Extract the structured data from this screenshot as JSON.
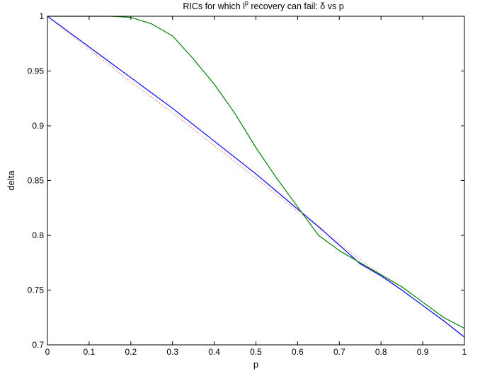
{
  "chart_data": {
    "type": "line",
    "title": {
      "prefix": "RICs for which ",
      "l_symbol": "l",
      "p_superscript": "p",
      "suffix": " recovery can fail: ",
      "delta_symbol": "δ",
      "tail": " vs p"
    },
    "xlabel": "p",
    "ylabel": "delta",
    "xlim": [
      0,
      1
    ],
    "ylim": [
      0.7,
      1
    ],
    "xticks": [
      0,
      0.1,
      0.2,
      0.3,
      0.4,
      0.5,
      0.6,
      0.7,
      0.8,
      0.9,
      1
    ],
    "xtick_labels": [
      "0",
      "0.1",
      "0.2",
      "0.3",
      "0.4",
      "0.5",
      "0.6",
      "0.7",
      "0.8",
      "0.9",
      "1"
    ],
    "yticks": [
      0.7,
      0.75,
      0.8,
      0.85,
      0.9,
      0.95,
      1
    ],
    "ytick_labels": [
      "0.7",
      "0.75",
      "0.8",
      "0.85",
      "0.9",
      "0.95",
      "1"
    ],
    "grid": false,
    "legend": "none",
    "x": [
      0,
      0.05,
      0.1,
      0.15,
      0.2,
      0.25,
      0.3,
      0.35,
      0.4,
      0.45,
      0.5,
      0.55,
      0.6,
      0.65,
      0.7,
      0.75,
      0.8,
      0.85,
      0.9,
      0.95,
      1
    ],
    "series": [
      {
        "color": "#0000ff",
        "style": "solid",
        "values": [
          1.0,
          0.986,
          0.972,
          0.958,
          0.944,
          0.93,
          0.916,
          0.901,
          0.886,
          0.871,
          0.856,
          0.84,
          0.824,
          0.808,
          0.791,
          0.774,
          0.763,
          0.75,
          0.736,
          0.722,
          0.707
        ]
      },
      {
        "color": "#008000",
        "style": "solid",
        "values": [
          1.0,
          1.0,
          1.0,
          1.0,
          0.999,
          0.993,
          0.982,
          0.961,
          0.938,
          0.911,
          0.88,
          0.852,
          0.826,
          0.8,
          0.786,
          0.775,
          0.764,
          0.753,
          0.739,
          0.725,
          0.715
        ]
      },
      {
        "color": "#ff6a6a",
        "style": "dotted",
        "values": [
          1.0,
          0.985,
          0.97,
          0.955,
          0.94,
          0.926,
          0.912,
          0.897,
          0.882,
          0.867,
          0.852,
          0.837,
          0.822,
          0.807,
          0.792,
          0.778,
          0.764,
          0.75,
          0.736,
          0.722,
          0.707
        ]
      }
    ]
  }
}
